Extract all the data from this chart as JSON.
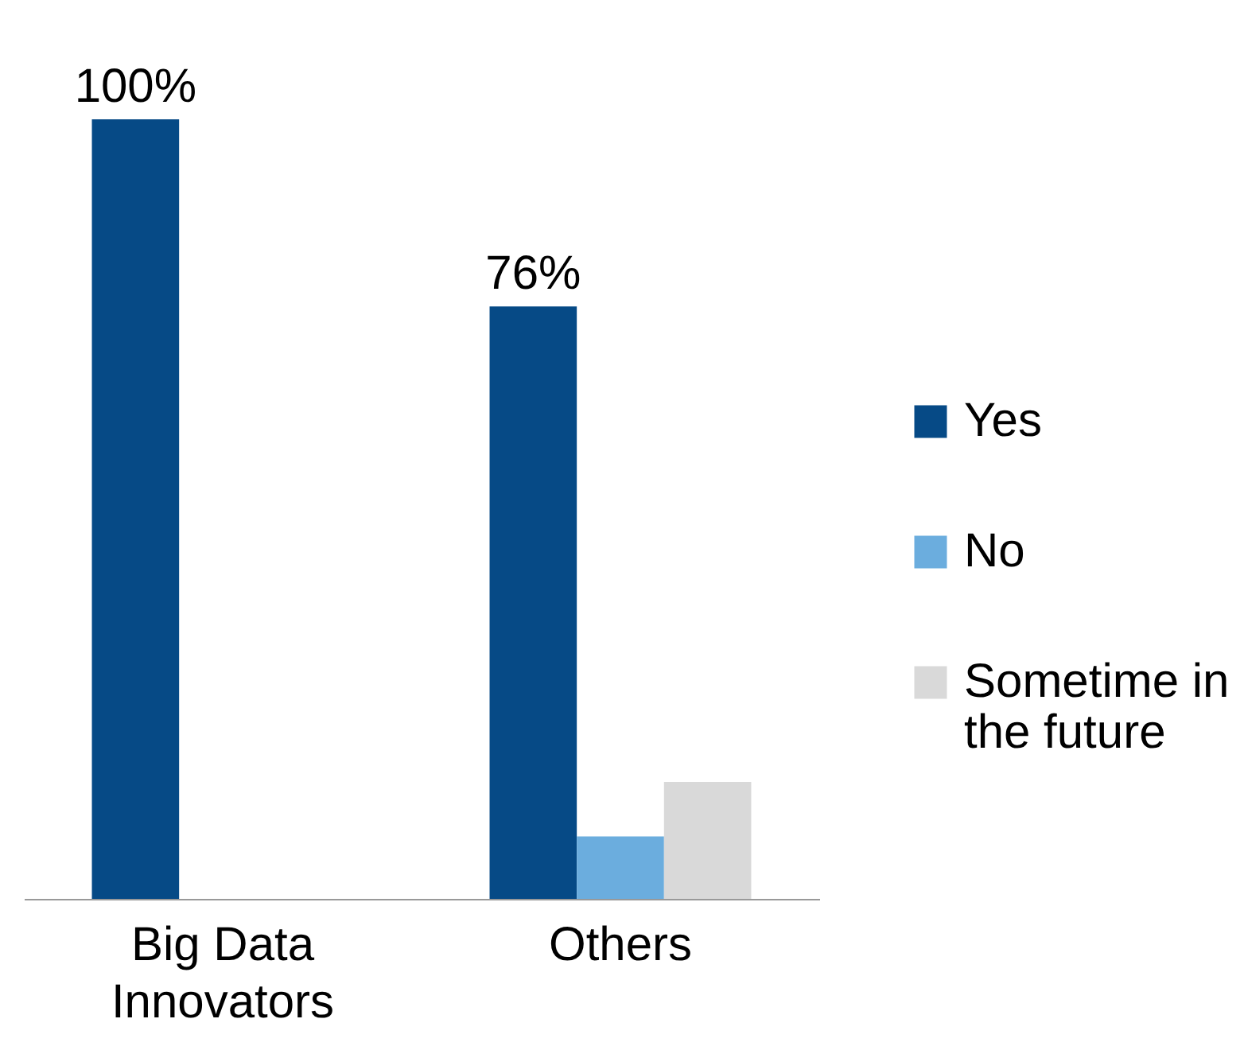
{
  "chart_data": {
    "type": "bar",
    "categories": [
      "Big Data Innovators",
      "Others"
    ],
    "series": [
      {
        "name": "Yes",
        "color": "#064a86",
        "values": [
          100,
          76
        ],
        "value_labels": [
          "100%",
          "76%"
        ]
      },
      {
        "name": "No",
        "color": "#6badde",
        "values": [
          0,
          8
        ]
      },
      {
        "name": "Sometime in the future",
        "color": "#d9d9d9",
        "values": [
          0,
          15
        ]
      }
    ],
    "legend": "right",
    "grid": false
  }
}
